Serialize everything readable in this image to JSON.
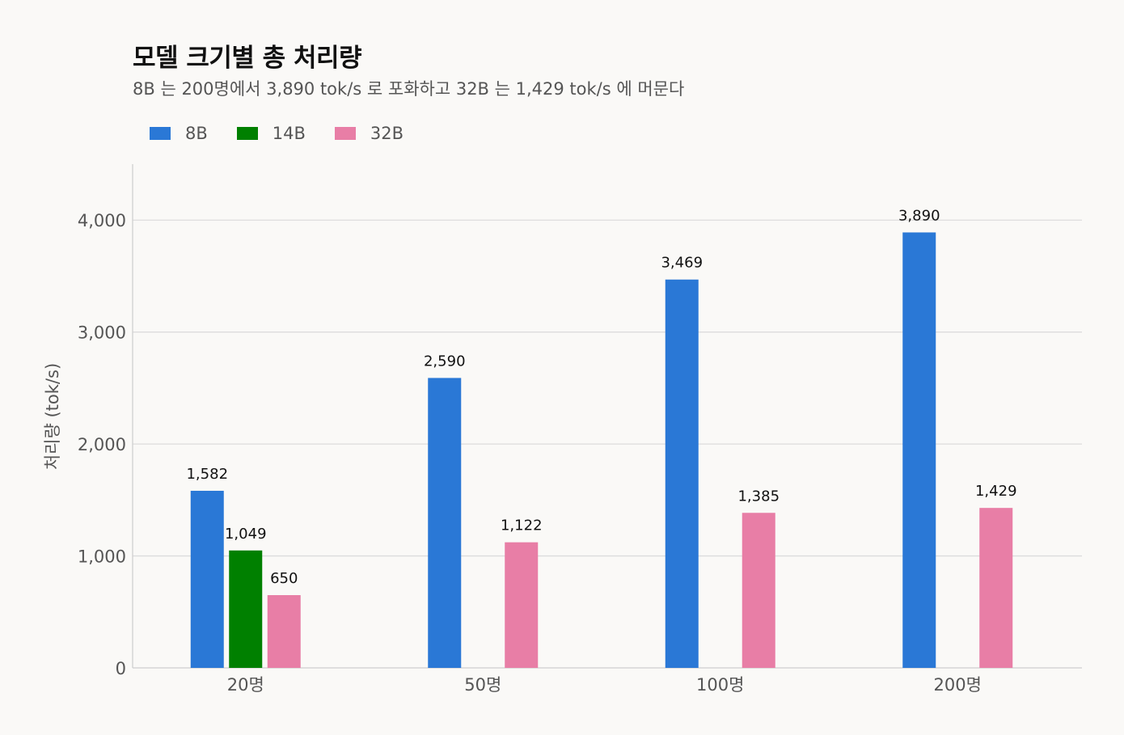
{
  "chart_data": {
    "type": "bar",
    "title": "모델 크기별 총 처리량",
    "subtitle": "8B 는 200명에서 3,890 tok/s 로 포화하고 32B 는 1,429 tok/s 에 머문다",
    "ylabel": "처리량 (tok/s)",
    "xlabel": "",
    "categories": [
      "20명",
      "50명",
      "100명",
      "200명"
    ],
    "series": [
      {
        "name": "8B",
        "color": "#2a78d6",
        "values": [
          1582,
          2590,
          3469,
          3890
        ],
        "labels": [
          "1,582",
          "2,590",
          "3,469",
          "3,890"
        ]
      },
      {
        "name": "14B",
        "color": "#008000",
        "values": [
          1049,
          null,
          null,
          null
        ],
        "labels": [
          "1,049",
          "",
          "",
          ""
        ]
      },
      {
        "name": "32B",
        "color": "#e87ea6",
        "values": [
          650,
          1122,
          1385,
          1429
        ],
        "labels": [
          "650",
          "1,122",
          "1,385",
          "1,429"
        ]
      }
    ],
    "ylim": [
      0,
      4500
    ],
    "yticks": [
      0,
      1000,
      2000,
      3000,
      4000
    ],
    "ytick_labels": [
      "0",
      "1,000",
      "2,000",
      "3,000",
      "4,000"
    ],
    "grid": true,
    "legend_position": "top-left"
  }
}
